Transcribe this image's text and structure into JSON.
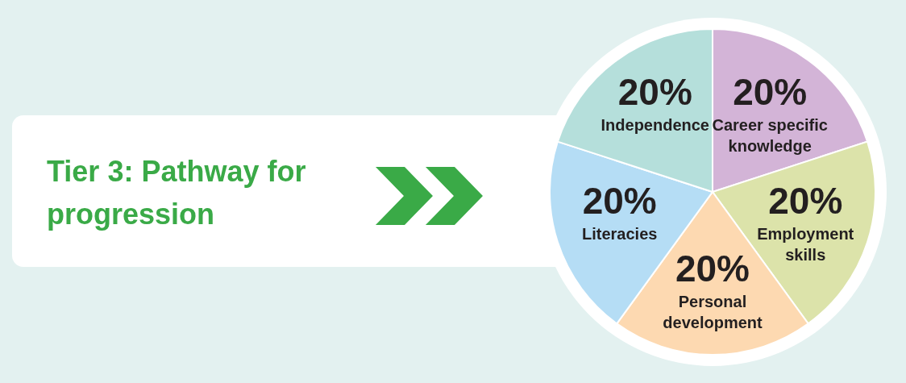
{
  "chart_data": {
    "type": "pie",
    "title": "Tier 3: Pathway for progression",
    "categories": [
      "Career specific knowledge",
      "Employment skills",
      "Personal development",
      "Literacies",
      "Independence"
    ],
    "values": [
      20,
      20,
      20,
      20,
      20
    ],
    "value_labels": [
      "20%",
      "20%",
      "20%",
      "20%",
      "20%"
    ],
    "colors": [
      "#d3b4d7",
      "#dce3aa",
      "#fdd9b1",
      "#b5ddf5",
      "#b5dfdb"
    ]
  }
}
